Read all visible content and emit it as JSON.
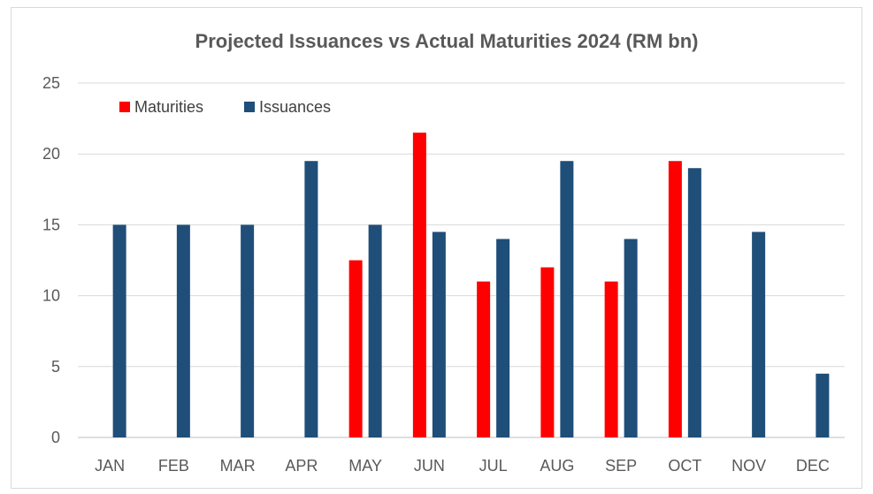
{
  "chart_data": {
    "type": "bar",
    "title": "Projected Issuances vs Actual Maturities 2024 (RM bn)",
    "xlabel": "",
    "ylabel": "",
    "categories": [
      "JAN",
      "FEB",
      "MAR",
      "APR",
      "MAY",
      "JUN",
      "JUL",
      "AUG",
      "SEP",
      "OCT",
      "NOV",
      "DEC"
    ],
    "series": [
      {
        "name": "Maturities",
        "color": "#ff0000",
        "values": [
          0,
          0,
          0,
          0,
          12.5,
          21.5,
          11,
          12,
          11,
          19.5,
          0,
          0
        ]
      },
      {
        "name": "Issuances",
        "color": "#1f4e79",
        "values": [
          15,
          15,
          15,
          19.5,
          15,
          14.5,
          14,
          19.5,
          14,
          19,
          14.5,
          4.5
        ]
      }
    ],
    "ylim": [
      0,
      25
    ],
    "yticks": [
      0,
      5,
      10,
      15,
      20,
      25
    ],
    "grid": true,
    "legend_position": "top-left"
  }
}
